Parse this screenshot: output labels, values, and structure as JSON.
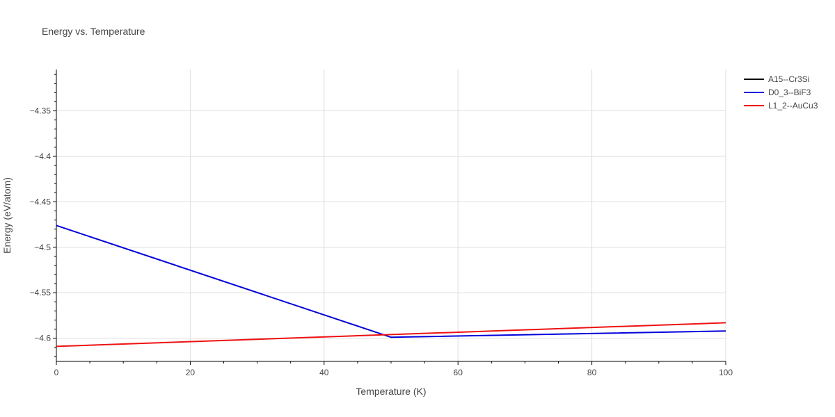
{
  "chart_data": {
    "type": "line",
    "title": "Energy vs. Temperature",
    "xlabel": "Temperature (K)",
    "ylabel": "Energy (eV/atom)",
    "xlim": [
      0,
      100
    ],
    "ylim": [
      -4.6255,
      -4.3045
    ],
    "x_ticks": [
      0,
      20,
      40,
      60,
      80,
      100
    ],
    "y_ticks": [
      -4.35,
      -4.4,
      -4.45,
      -4.5,
      -4.55,
      -4.6
    ],
    "x_tick_labels": [
      "0",
      "20",
      "40",
      "60",
      "80",
      "100"
    ],
    "y_tick_labels": [
      "−4.35",
      "−4.4",
      "−4.45",
      "−4.5",
      "−4.55",
      "−4.6"
    ],
    "grid": true,
    "legend_position": "top-right",
    "series": [
      {
        "name": "A15--Cr3Si",
        "color": "#000000",
        "x": [],
        "y": []
      },
      {
        "name": "D0_3--BiF3",
        "color": "#0000dd",
        "x": [
          0,
          50,
          100
        ],
        "y": [
          -4.476,
          -4.599,
          -4.592
        ]
      },
      {
        "name": "L1_2--AuCu3",
        "color": "#ee1111",
        "x": [
          0,
          100
        ],
        "y": [
          -4.609,
          -4.583
        ]
      }
    ]
  }
}
